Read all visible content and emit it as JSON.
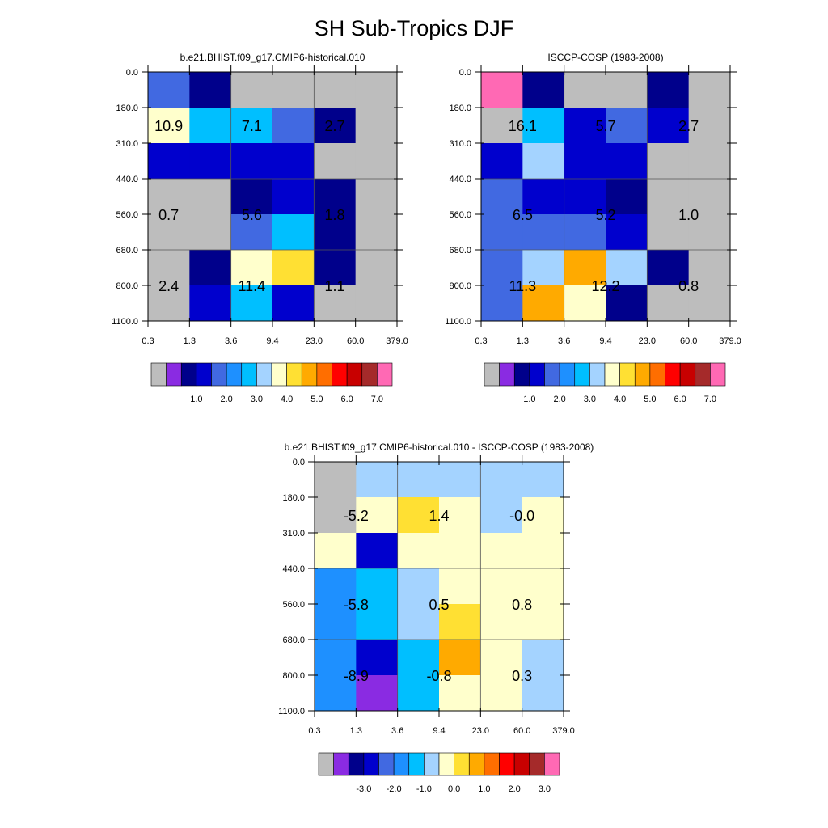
{
  "title": "SH Sub-Tropics DJF",
  "chart_data": [
    {
      "type": "heatmap",
      "subtitle": "b.e21.BHIST.f09_g17.CMIP6-historical.010",
      "x_ticks": [
        "0.3",
        "1.3",
        "3.6",
        "9.4",
        "23.0",
        "60.0",
        "379.0"
      ],
      "y_ticks": [
        "0.0",
        "180.0",
        "310.0",
        "440.0",
        "560.0",
        "680.0",
        "800.0",
        "1100.0"
      ],
      "cell_values": [
        [
          1.8,
          0.7,
          -1,
          -1,
          -1,
          -1
        ],
        [
          3.5,
          2.5,
          2.5,
          1.8,
          0.7,
          -1
        ],
        [
          1.2,
          1.2,
          1.2,
          1.2,
          -1,
          -1
        ],
        [
          -1,
          -1,
          0.7,
          1.2,
          0.7,
          -1
        ],
        [
          -1,
          -1,
          1.8,
          2.5,
          0.7,
          -1
        ],
        [
          -1,
          0.7,
          3.5,
          4.0,
          0.7,
          -1
        ],
        [
          -1,
          1.2,
          2.5,
          1.2,
          -1,
          -1
        ]
      ],
      "group_labels": [
        {
          "text": "10.9",
          "col": 0.5,
          "row": 1.5
        },
        {
          "text": "7.1",
          "col": 2.5,
          "row": 1.5
        },
        {
          "text": "2.7",
          "col": 4.5,
          "row": 1.5
        },
        {
          "text": "0.7",
          "col": 0.5,
          "row": 4.0
        },
        {
          "text": "5.6",
          "col": 2.5,
          "row": 4.0
        },
        {
          "text": "1.8",
          "col": 4.5,
          "row": 4.0
        },
        {
          "text": "2.4",
          "col": 0.5,
          "row": 6.0
        },
        {
          "text": "11.4",
          "col": 2.5,
          "row": 6.0
        },
        {
          "text": "1.1",
          "col": 4.5,
          "row": 6.0
        }
      ],
      "colorbar": {
        "colors": [
          "#bdbdbd",
          "#8a2be2",
          "#00008b",
          "#0000cd",
          "#4169e1",
          "#1e90ff",
          "#00bfff",
          "#a4d3ff",
          "#ffffcc",
          "#ffe033",
          "#ffaa00",
          "#ff6e00",
          "#ff0000",
          "#c80000",
          "#a52a2a",
          "#ff69b4"
        ],
        "labels": [
          "1.0",
          "2.0",
          "3.0",
          "4.0",
          "5.0",
          "6.0",
          "7.0"
        ],
        "boundaries": [
          0,
          0.5,
          1.0,
          1.5,
          2.0,
          2.5,
          3.0,
          3.5,
          4.0,
          4.5,
          5.0,
          5.5,
          6.0,
          6.5,
          7.0
        ]
      }
    },
    {
      "type": "heatmap",
      "subtitle": "ISCCP-COSP (1983-2008)",
      "x_ticks": [
        "0.3",
        "1.3",
        "3.6",
        "9.4",
        "23.0",
        "60.0",
        "379.0"
      ],
      "y_ticks": [
        "0.0",
        "180.0",
        "310.0",
        "440.0",
        "560.0",
        "680.0",
        "800.0",
        "1100.0"
      ],
      "cell_values": [
        [
          8.0,
          0.7,
          -1,
          -1,
          0.7,
          -1
        ],
        [
          -1,
          2.5,
          1.2,
          1.8,
          1.2,
          -1
        ],
        [
          1.2,
          3.2,
          1.2,
          1.2,
          -1,
          -1
        ],
        [
          1.8,
          1.2,
          1.2,
          0.7,
          -1,
          -1
        ],
        [
          1.8,
          1.8,
          1.8,
          1.2,
          -1,
          -1
        ],
        [
          1.8,
          3.2,
          4.7,
          3.0,
          0.7,
          -1
        ],
        [
          1.8,
          4.7,
          3.7,
          0.7,
          -1,
          -1
        ]
      ],
      "group_labels": [
        {
          "text": "16.1",
          "col": 1.0,
          "row": 1.5
        },
        {
          "text": "5.7",
          "col": 3.0,
          "row": 1.5
        },
        {
          "text": "2.7",
          "col": 5.0,
          "row": 1.5
        },
        {
          "text": "6.5",
          "col": 1.0,
          "row": 4.0
        },
        {
          "text": "5.2",
          "col": 3.0,
          "row": 4.0
        },
        {
          "text": "1.0",
          "col": 5.0,
          "row": 4.0
        },
        {
          "text": "11.3",
          "col": 1.0,
          "row": 6.0
        },
        {
          "text": "12.2",
          "col": 3.0,
          "row": 6.0
        },
        {
          "text": "0.8",
          "col": 5.0,
          "row": 6.0
        }
      ],
      "colorbar": {
        "colors": [
          "#bdbdbd",
          "#8a2be2",
          "#00008b",
          "#0000cd",
          "#4169e1",
          "#1e90ff",
          "#00bfff",
          "#a4d3ff",
          "#ffffcc",
          "#ffe033",
          "#ffaa00",
          "#ff6e00",
          "#ff0000",
          "#c80000",
          "#a52a2a",
          "#ff69b4"
        ],
        "labels": [
          "1.0",
          "2.0",
          "3.0",
          "4.0",
          "5.0",
          "6.0",
          "7.0"
        ],
        "boundaries": [
          0,
          0.5,
          1.0,
          1.5,
          2.0,
          2.5,
          3.0,
          3.5,
          4.0,
          4.5,
          5.0,
          5.5,
          6.0,
          6.5,
          7.0
        ]
      }
    },
    {
      "type": "heatmap",
      "subtitle": "b.e21.BHIST.f09_g17.CMIP6-historical.010 - ISCCP-COSP (1983-2008)",
      "x_ticks": [
        "0.3",
        "1.3",
        "3.6",
        "9.4",
        "23.0",
        "60.0",
        "379.0"
      ],
      "y_ticks": [
        "0.0",
        "180.0",
        "310.0",
        "440.0",
        "560.0",
        "680.0",
        "800.0",
        "1100.0"
      ],
      "cell_values": [
        [
          -9,
          -0.3,
          -0.3,
          -0.3,
          -0.3,
          -0.3
        ],
        [
          -4.0,
          0.2,
          0.7,
          0.2,
          -0.3,
          0.2
        ],
        [
          0.2,
          -2.3,
          0.2,
          0.2,
          0.2,
          0.2
        ],
        [
          -1.3,
          -0.8,
          -0.3,
          0.2,
          0.2,
          0.2
        ],
        [
          -1.3,
          -0.8,
          -0.3,
          0.7,
          0.2,
          0.2
        ],
        [
          -1.3,
          -2.3,
          -0.8,
          1.2,
          0.2,
          -0.3
        ],
        [
          -1.3,
          -3.3,
          -0.8,
          0.2,
          0.2,
          -0.3
        ]
      ],
      "group_labels": [
        {
          "text": "-5.2",
          "col": 1.0,
          "row": 1.5
        },
        {
          "text": "1.4",
          "col": 3.0,
          "row": 1.5
        },
        {
          "text": "-0.0",
          "col": 5.0,
          "row": 1.5
        },
        {
          "text": "-5.8",
          "col": 1.0,
          "row": 4.0
        },
        {
          "text": "0.5",
          "col": 3.0,
          "row": 4.0
        },
        {
          "text": "0.8",
          "col": 5.0,
          "row": 4.0
        },
        {
          "text": "-8.9",
          "col": 1.0,
          "row": 6.0
        },
        {
          "text": "-0.8",
          "col": 3.0,
          "row": 6.0
        },
        {
          "text": "0.3",
          "col": 5.0,
          "row": 6.0
        }
      ],
      "colorbar": {
        "colors": [
          "#bdbdbd",
          "#8a2be2",
          "#00008b",
          "#0000cd",
          "#4169e1",
          "#1e90ff",
          "#00bfff",
          "#a4d3ff",
          "#ffffcc",
          "#ffe033",
          "#ffaa00",
          "#ff6e00",
          "#ff0000",
          "#c80000",
          "#a52a2a",
          "#ff69b4"
        ],
        "labels": [
          "-3.0",
          "-2.0",
          "-1.0",
          "0.0",
          "1.0",
          "2.0",
          "3.0"
        ],
        "boundaries": [
          -3.5,
          -3.0,
          -2.5,
          -2.0,
          -1.5,
          -1.0,
          -0.5,
          0.0,
          0.5,
          1.0,
          1.5,
          2.0,
          2.5,
          3.0,
          3.5
        ]
      }
    }
  ]
}
